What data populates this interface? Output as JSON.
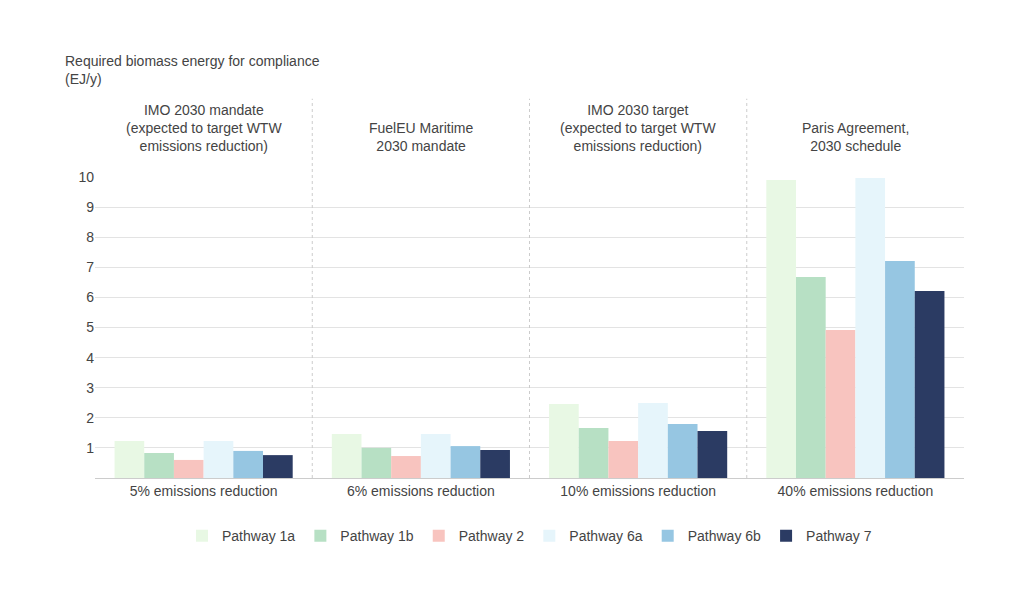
{
  "chart_data": {
    "type": "bar",
    "ylabel": "Required biomass energy for compliance\n(EJ/y)",
    "group_titles": [
      "IMO 2030 mandate\n(expected to target WTW\nemissions reduction)",
      "FuelEU Maritime\n2030 mandate",
      "IMO 2030 target\n(expected to target WTW\nemissions reduction)",
      "Paris Agreement,\n2030 schedule"
    ],
    "categories": [
      "5% emissions reduction",
      "6% emissions reduction",
      "10% emissions reduction",
      "40% emissions reduction"
    ],
    "series": [
      {
        "name": "Pathway 1a",
        "color": "#e8f8e4",
        "values": [
          1.23,
          1.46,
          2.46,
          9.9
        ]
      },
      {
        "name": "Pathway 1b",
        "color": "#b7e0c4",
        "values": [
          0.83,
          1.0,
          1.66,
          6.68
        ]
      },
      {
        "name": "Pathway 2",
        "color": "#f8c4bf",
        "values": [
          0.6,
          0.73,
          1.23,
          4.92
        ]
      },
      {
        "name": "Pathway 6a",
        "color": "#e6f5fb",
        "values": [
          1.23,
          1.46,
          2.49,
          9.97
        ]
      },
      {
        "name": "Pathway 6b",
        "color": "#96c6e2",
        "values": [
          0.9,
          1.06,
          1.79,
          7.21
        ]
      },
      {
        "name": "Pathway 7",
        "color": "#2b3b63",
        "values": [
          0.76,
          0.93,
          1.56,
          6.21
        ]
      }
    ],
    "ylim": [
      0,
      10
    ],
    "yticks": [
      1,
      2,
      3,
      4,
      5,
      6,
      7,
      8,
      9,
      10
    ],
    "grid": true,
    "legend": "bottom"
  }
}
